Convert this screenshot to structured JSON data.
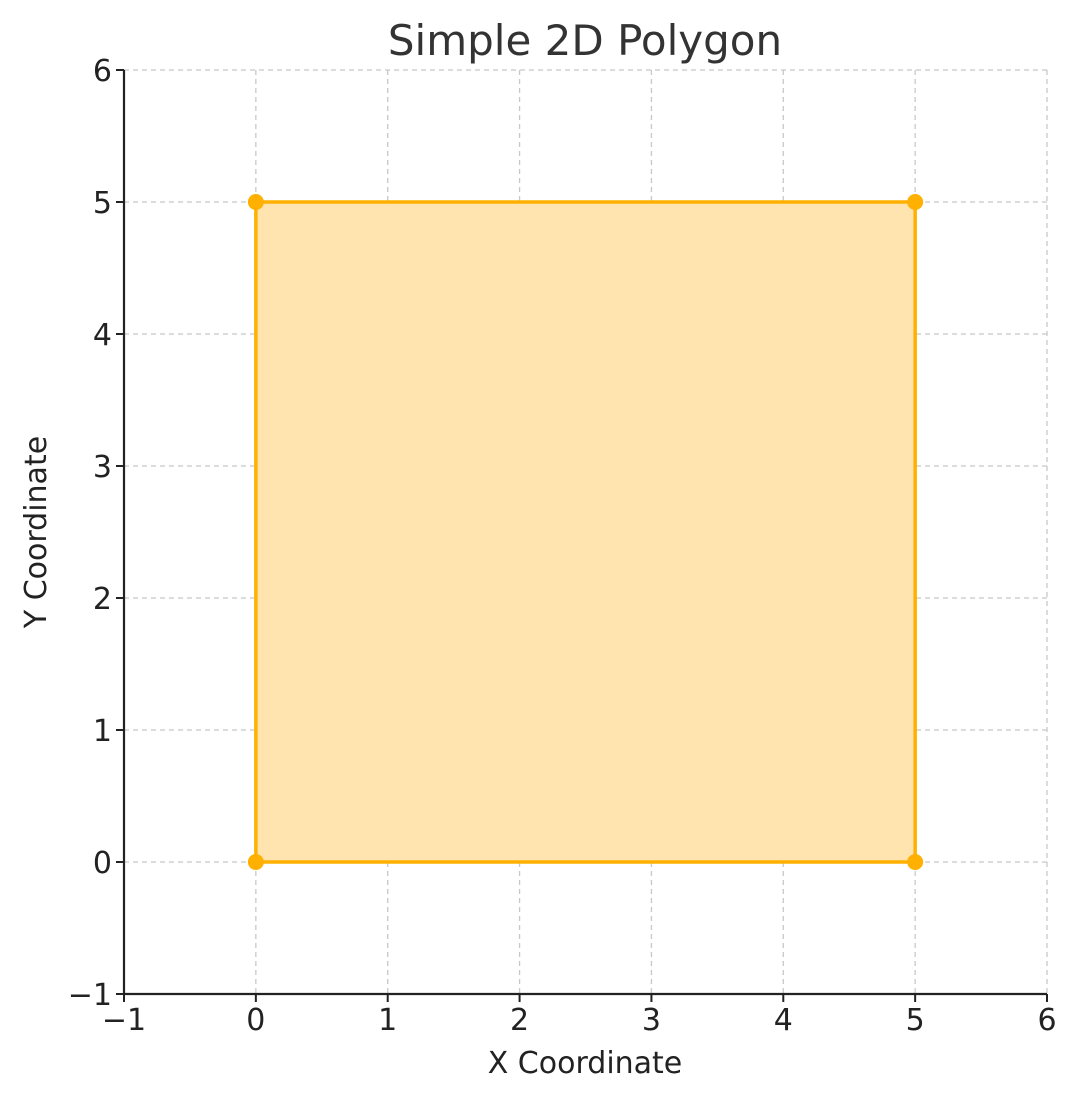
{
  "chart_data": {
    "type": "area",
    "title": "Simple 2D Polygon",
    "xlabel": "X Coordinate",
    "ylabel": "Y Coordinate",
    "xlim": [
      -1,
      6
    ],
    "ylim": [
      -1,
      6
    ],
    "xticks": [
      -1,
      0,
      1,
      2,
      3,
      4,
      5,
      6
    ],
    "yticks": [
      -1,
      0,
      1,
      2,
      3,
      4,
      5,
      6
    ],
    "xtick_labels": [
      "−1",
      "0",
      "1",
      "2",
      "3",
      "4",
      "5",
      "6"
    ],
    "ytick_labels": [
      "−1",
      "0",
      "1",
      "2",
      "3",
      "4",
      "5",
      "6"
    ],
    "grid": true,
    "series": [
      {
        "points": [
          {
            "x": 0,
            "y": 0
          },
          {
            "x": 5,
            "y": 0
          },
          {
            "x": 5,
            "y": 5
          },
          {
            "x": 0,
            "y": 5
          }
        ],
        "closed": true,
        "edge_color": "#FFB000",
        "fill_color": "#FFE4B0",
        "marker_color": "#FFB000"
      }
    ]
  }
}
